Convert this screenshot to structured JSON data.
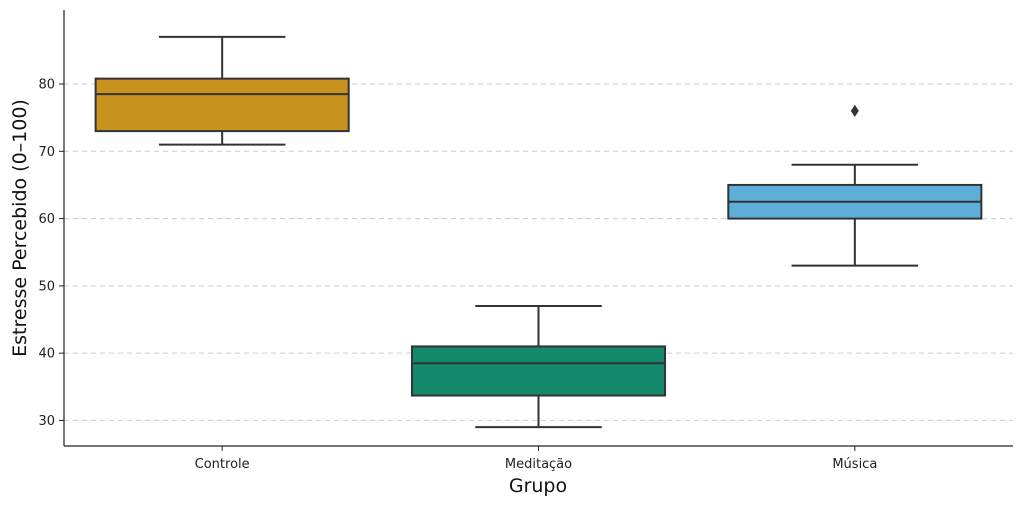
{
  "chart_data": {
    "type": "box",
    "xlabel": "Grupo",
    "ylabel": "Estresse Percebido (0–100)",
    "ylim": [
      26.2,
      91
    ],
    "yticks": [
      30,
      40,
      50,
      60,
      70,
      80
    ],
    "ytick_labels": [
      "30",
      "40",
      "50",
      "60",
      "70",
      "80"
    ],
    "grid": "y-dashed",
    "categories": [
      "Controle",
      "Meditação",
      "Música"
    ],
    "boxes": [
      {
        "name": "Controle",
        "whisker_low": 71,
        "q1": 73,
        "median": 78.5,
        "q3": 80.8,
        "whisker_high": 87,
        "outliers": [],
        "color": "#C8921F"
      },
      {
        "name": "Meditação",
        "whisker_low": 29,
        "q1": 33.7,
        "median": 38.5,
        "q3": 41,
        "whisker_high": 47,
        "outliers": [],
        "color": "#138A6C"
      },
      {
        "name": "Música",
        "whisker_low": 53,
        "q1": 60,
        "median": 62.5,
        "q3": 65,
        "whisker_high": 68,
        "outliers": [
          76
        ],
        "color": "#5DAED8"
      }
    ]
  },
  "colors": {
    "edge": "#333333",
    "grid": "#cccccc",
    "axis": "#222222"
  }
}
